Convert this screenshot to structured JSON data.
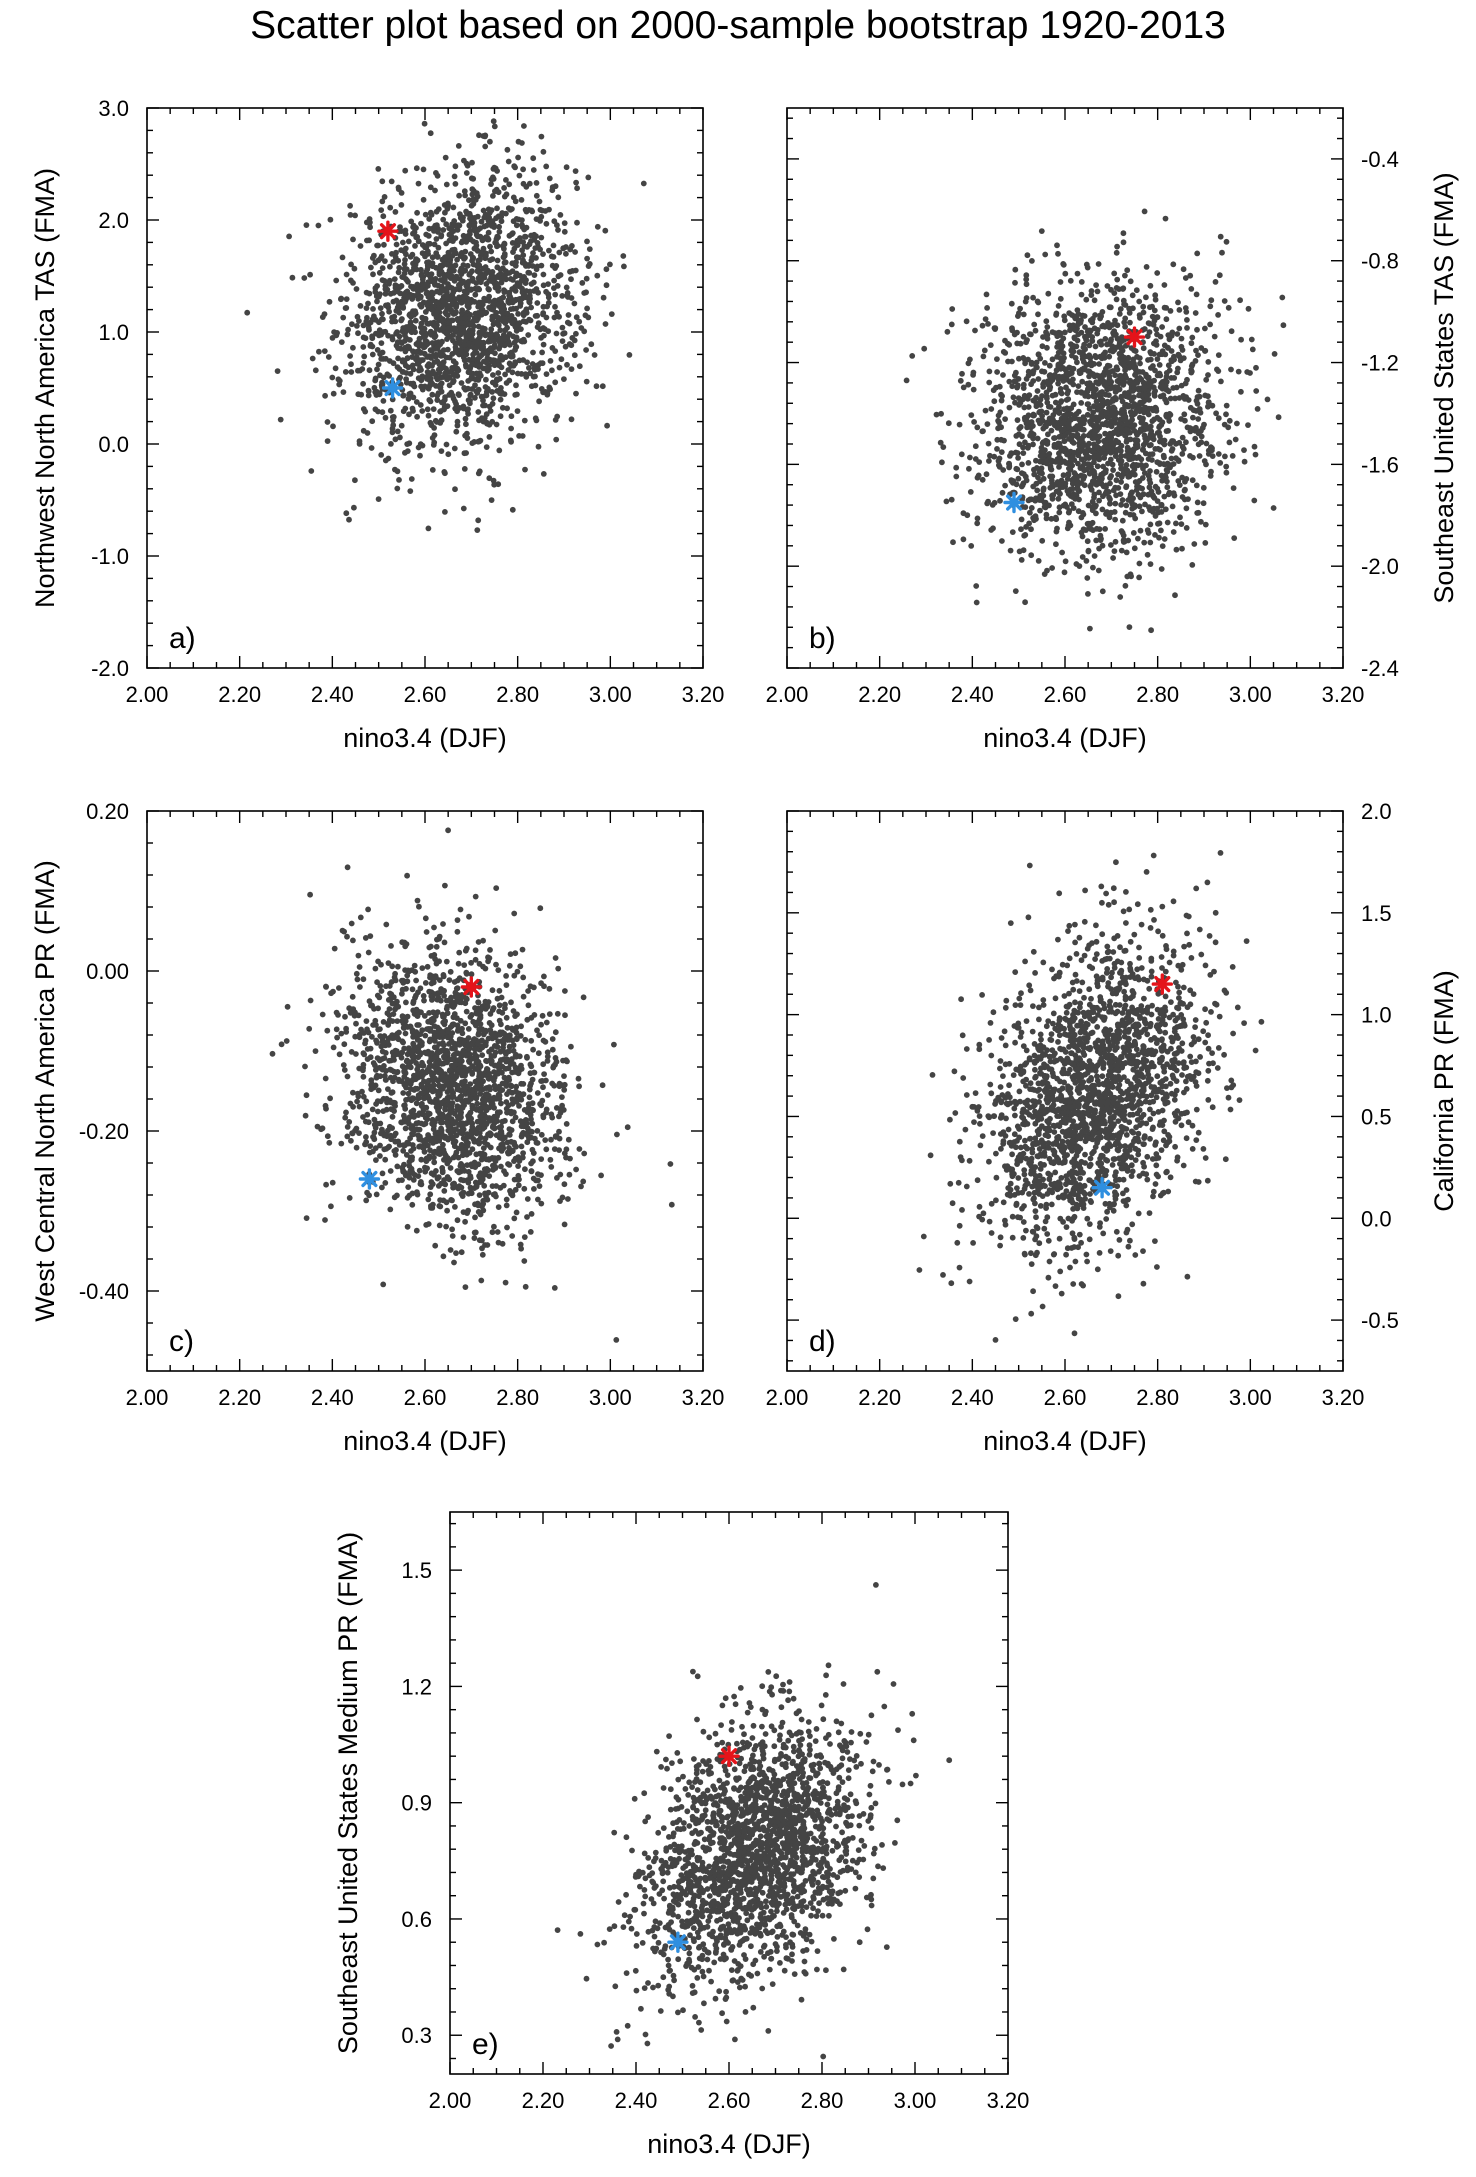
{
  "title": "Scatter plot based on 2000-sample bootstrap 1920-2013",
  "colors": {
    "points": "#444444",
    "red_star": "#e4141a",
    "blue_star": "#2f8fe0",
    "axis": "#000000"
  },
  "chart_data": [
    {
      "type": "scatter",
      "panel_label": "a)",
      "xlabel": "nino3.4 (DJF)",
      "ylabel": "Northwest North America TAS (FMA)",
      "ylabel_side": "left",
      "xlim": [
        2.0,
        3.2
      ],
      "ylim": [
        -2.0,
        3.0
      ],
      "xticks": [
        2.0,
        2.2,
        2.4,
        2.6,
        2.8,
        3.0,
        3.2
      ],
      "xtick_labels": [
        "2.00",
        "2.20",
        "2.40",
        "2.60",
        "2.80",
        "3.00",
        "3.20"
      ],
      "yticks": [
        -2.0,
        -1.0,
        0.0,
        1.0,
        2.0,
        3.0
      ],
      "ytick_labels": [
        "-2.0",
        "-1.0",
        "0.0",
        "1.0",
        "2.0",
        "3.0"
      ],
      "cloud": {
        "n": 2000,
        "x_mean": 2.68,
        "x_sd": 0.125,
        "y_mean": 1.2,
        "y_sd": 0.6,
        "corr": 0.15
      },
      "red_star": {
        "x": 2.52,
        "y": 1.9
      },
      "blue_star": {
        "x": 2.53,
        "y": 0.5
      }
    },
    {
      "type": "scatter",
      "panel_label": "b)",
      "xlabel": "nino3.4 (DJF)",
      "ylabel": "Southeast United States TAS (FMA)",
      "ylabel_side": "right",
      "xlim": [
        2.0,
        3.2
      ],
      "ylim": [
        -2.4,
        -0.2
      ],
      "xticks": [
        2.0,
        2.2,
        2.4,
        2.6,
        2.8,
        3.0,
        3.2
      ],
      "xtick_labels": [
        "2.00",
        "2.20",
        "2.40",
        "2.60",
        "2.80",
        "3.00",
        "3.20"
      ],
      "yticks": [
        -2.4,
        -2.0,
        -1.6,
        -1.2,
        -0.8,
        -0.4
      ],
      "ytick_labels": [
        "-2.4",
        "-2.0",
        "-1.6",
        "-1.2",
        "-0.8",
        "-0.4"
      ],
      "cloud": {
        "n": 2000,
        "x_mean": 2.68,
        "x_sd": 0.125,
        "y_mean": -1.42,
        "y_sd": 0.27,
        "corr": 0.05
      },
      "red_star": {
        "x": 2.75,
        "y": -1.1
      },
      "blue_star": {
        "x": 2.49,
        "y": -1.75
      }
    },
    {
      "type": "scatter",
      "panel_label": "c)",
      "xlabel": "nino3.4 (DJF)",
      "ylabel": "West Central North America PR (FMA)",
      "ylabel_side": "left",
      "xlim": [
        2.0,
        3.2
      ],
      "ylim": [
        -0.5,
        0.2
      ],
      "xticks": [
        2.0,
        2.2,
        2.4,
        2.6,
        2.8,
        3.0,
        3.2
      ],
      "xtick_labels": [
        "2.00",
        "2.20",
        "2.40",
        "2.60",
        "2.80",
        "3.00",
        "3.20"
      ],
      "yticks": [
        -0.4,
        -0.2,
        0.0,
        0.2
      ],
      "ytick_labels": [
        "-0.40",
        "-0.20",
        "0.00",
        "0.20"
      ],
      "cloud": {
        "n": 2000,
        "x_mean": 2.66,
        "x_sd": 0.12,
        "y_mean": -0.15,
        "y_sd": 0.085,
        "corr": -0.2
      },
      "red_star": {
        "x": 2.7,
        "y": -0.02
      },
      "blue_star": {
        "x": 2.48,
        "y": -0.26
      }
    },
    {
      "type": "scatter",
      "panel_label": "d)",
      "xlabel": "nino3.4 (DJF)",
      "ylabel": "California PR (FMA)",
      "ylabel_side": "right",
      "xlim": [
        2.0,
        3.2
      ],
      "ylim": [
        -0.75,
        2.0
      ],
      "xticks": [
        2.0,
        2.2,
        2.4,
        2.6,
        2.8,
        3.0,
        3.2
      ],
      "xtick_labels": [
        "2.00",
        "2.20",
        "2.40",
        "2.60",
        "2.80",
        "3.00",
        "3.20"
      ],
      "yticks": [
        -0.5,
        0.0,
        0.5,
        1.0,
        1.5,
        2.0
      ],
      "ytick_labels": [
        "-0.5",
        "0.0",
        "0.5",
        "1.0",
        "1.5",
        "2.0"
      ],
      "cloud": {
        "n": 2000,
        "x_mean": 2.66,
        "x_sd": 0.12,
        "y_mean": 0.6,
        "y_sd": 0.38,
        "corr": 0.35
      },
      "red_star": {
        "x": 2.81,
        "y": 1.15
      },
      "blue_star": {
        "x": 2.68,
        "y": 0.15
      }
    },
    {
      "type": "scatter",
      "panel_label": "e)",
      "xlabel": "nino3.4 (DJF)",
      "ylabel": "Southeast United States Medium PR (FMA)",
      "ylabel_side": "left",
      "xlim": [
        2.0,
        3.2
      ],
      "ylim": [
        0.2,
        1.65
      ],
      "xticks": [
        2.0,
        2.2,
        2.4,
        2.6,
        2.8,
        3.0,
        3.2
      ],
      "xtick_labels": [
        "2.00",
        "2.20",
        "2.40",
        "2.60",
        "2.80",
        "3.00",
        "3.20"
      ],
      "yticks": [
        0.3,
        0.6,
        0.9,
        1.2,
        1.5
      ],
      "ytick_labels": [
        "0.3",
        "0.6",
        "0.9",
        "1.2",
        "1.5"
      ],
      "cloud": {
        "n": 2000,
        "x_mean": 2.66,
        "x_sd": 0.12,
        "y_mean": 0.78,
        "y_sd": 0.17,
        "corr": 0.33
      },
      "red_star": {
        "x": 2.6,
        "y": 1.02
      },
      "blue_star": {
        "x": 2.49,
        "y": 0.54
      }
    }
  ]
}
